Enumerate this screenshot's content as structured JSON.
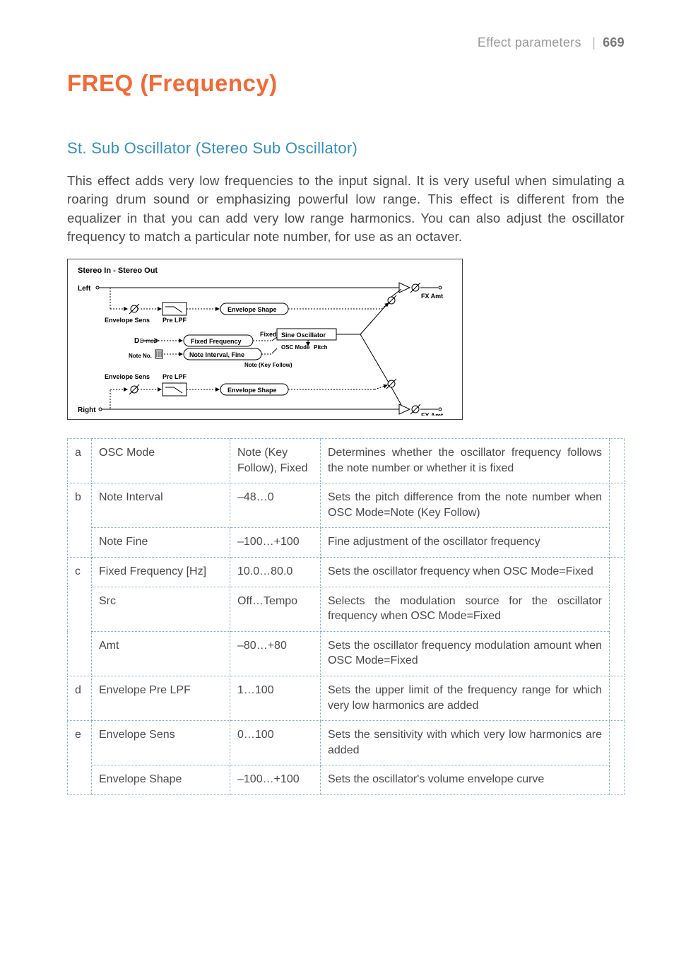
{
  "header": {
    "section": "Effect parameters",
    "page_num": "669"
  },
  "title": "FREQ (Frequency)",
  "subtitle": "St. Sub Oscillator (Stereo Sub Oscillator)",
  "intro": "This effect adds very low frequencies to the input signal. It is very useful when simulating a roaring drum sound or emphasizing powerful low range. This effect is different from the equalizer in that you can add very low range harmonics. You can also adjust the oscillator frequency to match a particular note number, for use as an octaver.",
  "diagram": {
    "io_label": "Stereo In - Stereo Out",
    "left_label": "Left",
    "right_label": "Right",
    "fx_amt": "FX Amt",
    "env_sens": "Envelope Sens",
    "pre_lpf": "Pre LPF",
    "env_shape": "Envelope Shape",
    "fixed_freq": "Fixed Frequency",
    "fixed": "Fixed",
    "sine_osc": "Sine Oscillator",
    "osc_mode": "OSC Mode",
    "pitch": "Pitch",
    "note_no": "Note No.",
    "note_interval": "Note Interval, Fine",
    "note_key_follow": "Note (Key Follow)",
    "d_mod": "D-mod"
  },
  "table": {
    "rows": [
      {
        "idx": "a",
        "name": "OSC Mode",
        "range": "Note (Key Follow), Fixed",
        "desc": "Determines whether the oscillator frequency follows the note number or whether it is fixed"
      },
      {
        "idx": "b",
        "name": "Note Interval",
        "range": "–48…0",
        "desc": "Sets the pitch difference from the note number when OSC Mode=Note (Key Follow)"
      },
      {
        "idx": "",
        "name": "Note Fine",
        "range": "–100…+100",
        "desc": "Fine adjustment of the oscillator frequency"
      },
      {
        "idx": "c",
        "name": "Fixed Frequency [Hz]",
        "range": "10.0…80.0",
        "desc": "Sets the oscillator frequency when OSC Mode=Fixed"
      },
      {
        "idx": "",
        "name": "Src",
        "range": "Off…Tempo",
        "desc": "Selects the modulation source for the oscillator frequency when OSC Mode=Fixed"
      },
      {
        "idx": "",
        "name": "Amt",
        "range": "–80…+80",
        "desc": "Sets the oscillator frequency modulation amount when OSC Mode=Fixed"
      },
      {
        "idx": "d",
        "name": "Envelope Pre LPF",
        "range": "1…100",
        "desc": "Sets the upper limit of the frequency range for which very low harmonics are added"
      },
      {
        "idx": "e",
        "name": "Envelope Sens",
        "range": "0…100",
        "desc": "Sets the sensitivity with which very low harmonics are added"
      },
      {
        "idx": "",
        "name": "Envelope Shape",
        "range": "–100…+100",
        "desc": "Sets the oscillator's volume envelope curve"
      }
    ]
  },
  "colors": {
    "accent_orange": "#f26a36",
    "accent_blue": "#338fbd",
    "text_body": "#4a4a4a",
    "text_header": "#999999",
    "table_border": "#7aa8c9",
    "diagram_border": "#444444"
  },
  "typography": {
    "h1_size_pt": 25,
    "h2_size_pt": 17,
    "body_size_pt": 14,
    "table_size_pt": 12
  }
}
